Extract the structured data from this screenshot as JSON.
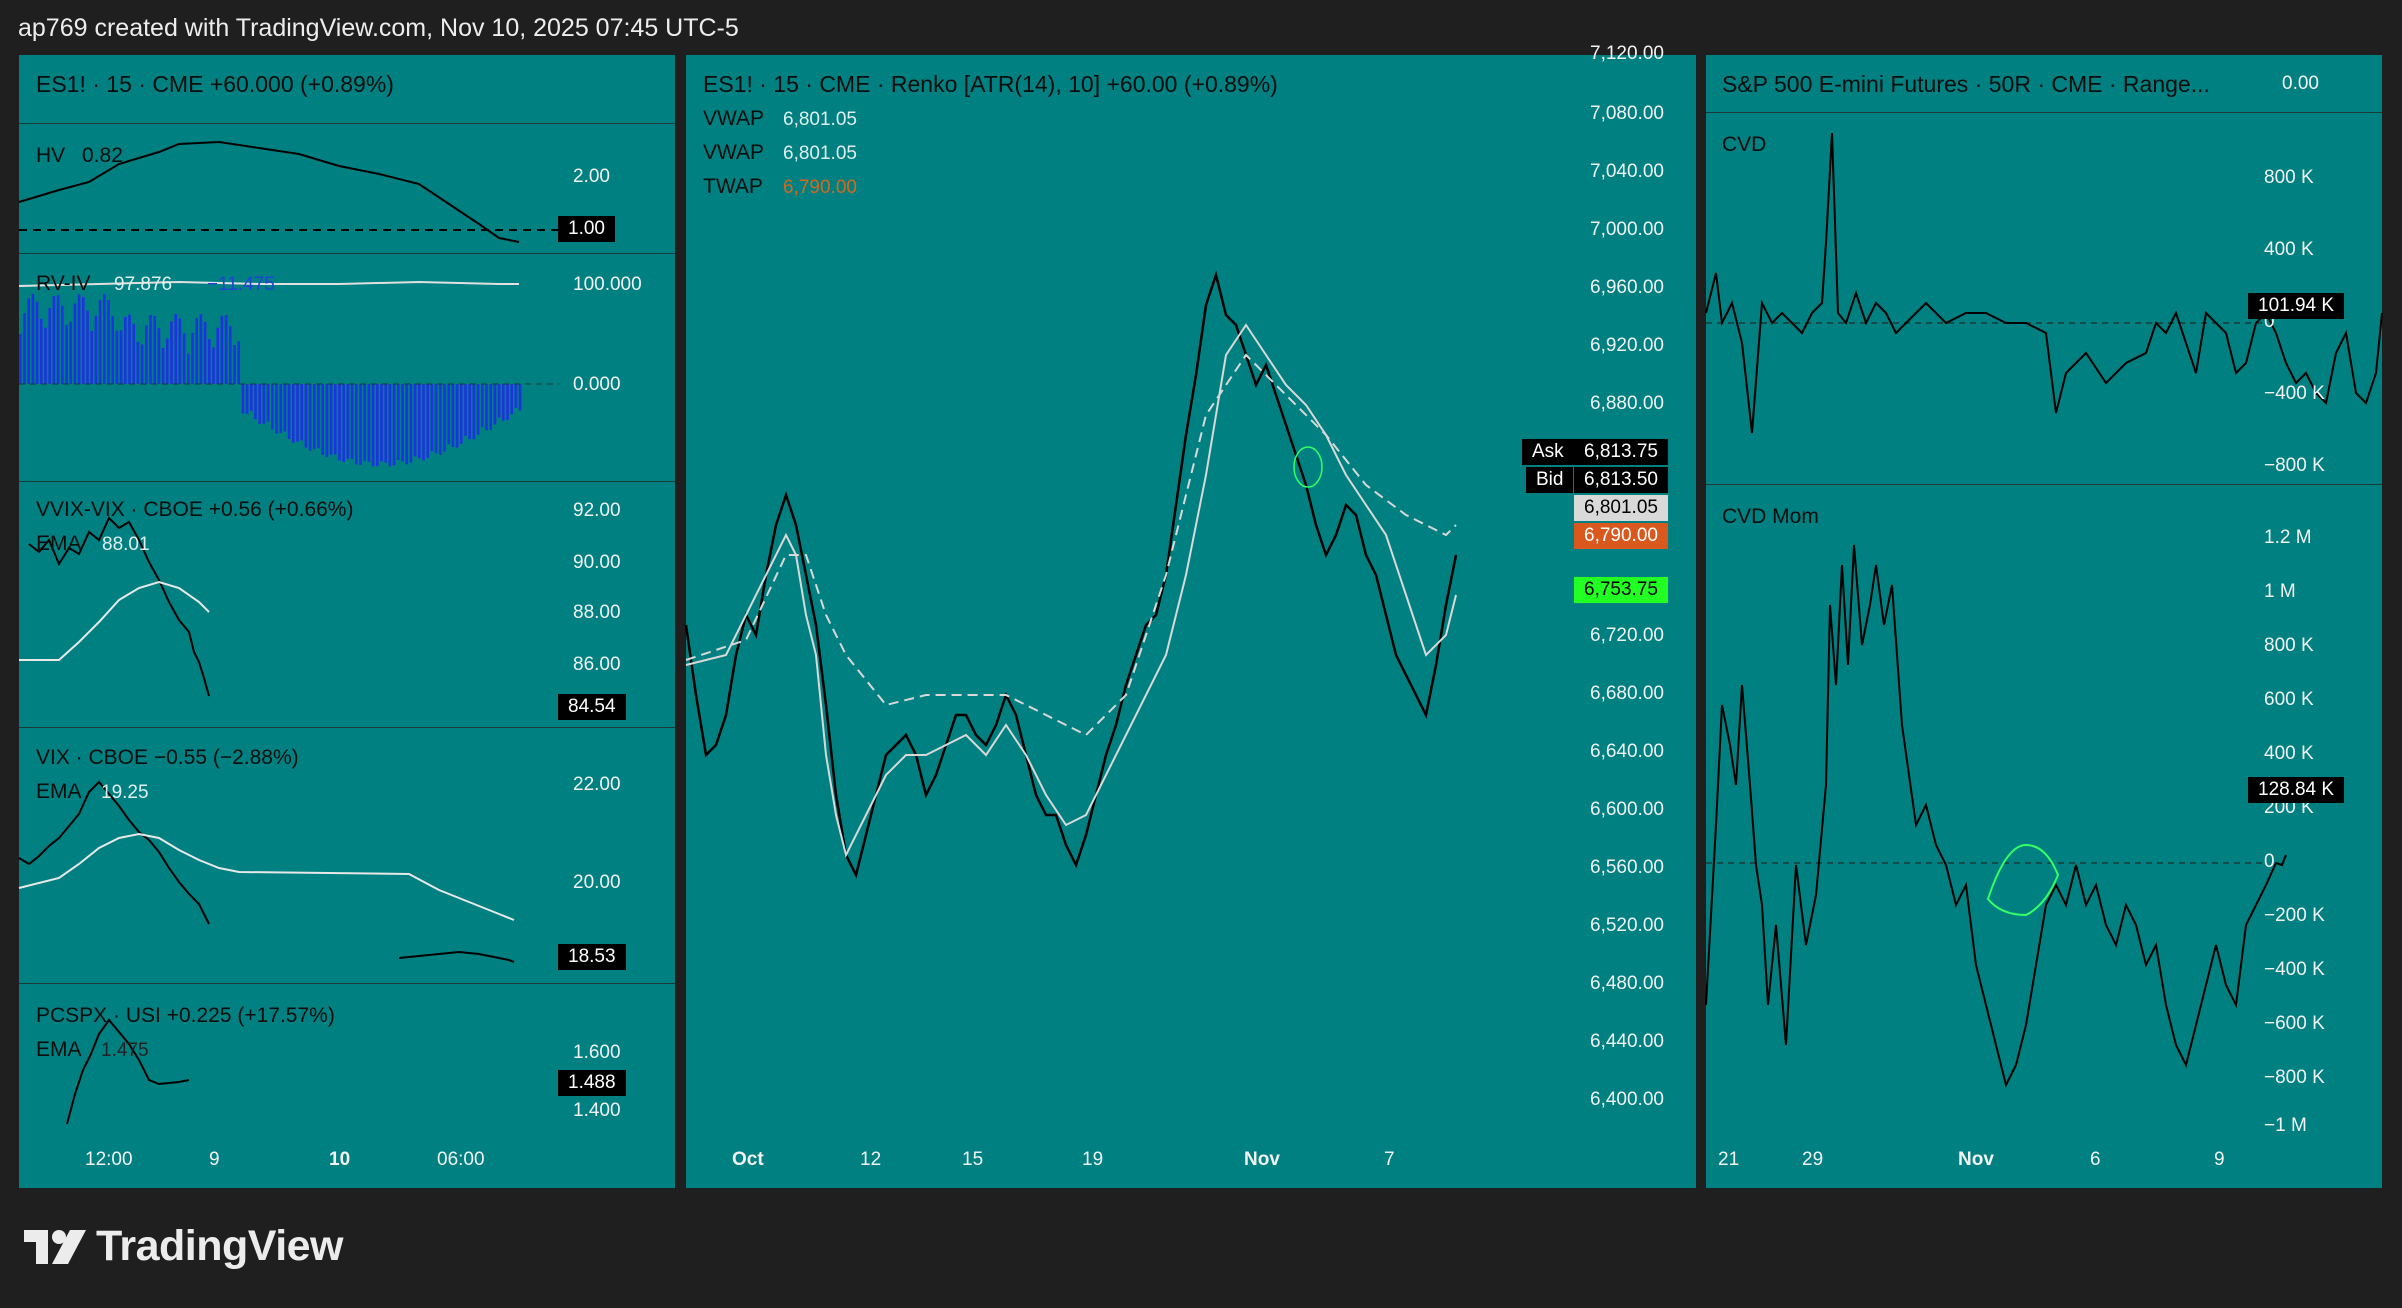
{
  "header": {
    "text": "ap769 created with TradingView.com, Nov 10, 2025 07:45 UTC-5"
  },
  "brand": {
    "name": "TradingView"
  },
  "colors": {
    "panel_bg": "#008080",
    "page_bg": "#1f1f1f",
    "ask_bid": "#000000",
    "vwap_tag": "#d9d9d9",
    "twap_tag": "#d9581d",
    "last_tag": "#22ff22",
    "histogram": "#1e33e0"
  },
  "left": {
    "main_title": "ES1! · 15 · CME  +60.000 (+0.89%)",
    "hv": {
      "title": "HV",
      "value": "0.82",
      "axis": [
        "2.00"
      ],
      "tag": "1.00"
    },
    "rviv": {
      "title": "RV-IV",
      "value1": "97.876",
      "value2": "−11.475",
      "axis": [
        "100.000",
        "0.000"
      ]
    },
    "vvix": {
      "title": "VVIX-VIX · CBOE  +0.56 (+0.66%)",
      "ema_label": "EMA",
      "ema_value": "88.01",
      "axis": [
        "92.00",
        "90.00",
        "88.00",
        "86.00"
      ],
      "tag": "84.54"
    },
    "vix": {
      "title": "VIX · CBOE  −0.55 (−2.88%)",
      "ema_label": "EMA",
      "ema_value": "19.25",
      "axis": [
        "22.00",
        "20.00"
      ],
      "tag": "18.53"
    },
    "pcspx": {
      "title": "PCSPX · USI  +0.225 (+17.57%)",
      "ema_label": "EMA",
      "ema_value": "1.475",
      "axis": [
        "1.600",
        "1.400"
      ],
      "tag": "1.488"
    },
    "xaxis": [
      "12:00",
      "9",
      "10",
      "06:00"
    ]
  },
  "center": {
    "title": "ES1! · 15 · CME · Renko [ATR(14), 10]  +60.00 (+0.89%)",
    "legend": [
      {
        "name": "VWAP",
        "value": "6,801.05"
      },
      {
        "name": "VWAP",
        "value": "6,801.05"
      },
      {
        "name": "TWAP",
        "value": "6,790.00"
      }
    ],
    "ask_label": "Ask",
    "ask": "6,813.75",
    "bid_label": "Bid",
    "bid": "6,813.50",
    "vwap_tag": "6,801.05",
    "twap_tag": "6,790.00",
    "last_tag": "6,753.75",
    "yaxis": [
      "7,120.00",
      "7,080.00",
      "7,040.00",
      "7,000.00",
      "6,960.00",
      "6,920.00",
      "6,880.00",
      "6,720.00",
      "6,680.00",
      "6,640.00",
      "6,600.00",
      "6,560.00",
      "6,520.00",
      "6,480.00",
      "6,440.00",
      "6,400.00"
    ],
    "xaxis": [
      "Oct",
      "12",
      "15",
      "19",
      "Nov",
      "7"
    ]
  },
  "right": {
    "title": "S&P 500 E-mini Futures · 50R · CME · Range...",
    "title_value": "0.00",
    "cvd": {
      "title": "CVD",
      "axis": [
        "800 K",
        "400 K",
        "0",
        "−400 K",
        "−800 K"
      ],
      "tag": "101.94 K"
    },
    "cvdmom": {
      "title": "CVD Mom",
      "axis": [
        "1.2 M",
        "1 M",
        "800 K",
        "600 K",
        "400 K",
        "200 K",
        "0",
        "−200 K",
        "−400 K",
        "−600 K",
        "−800 K",
        "−1 M"
      ],
      "tag": "128.84 K"
    },
    "xaxis": [
      "21",
      "29",
      "Nov",
      "6",
      "9"
    ]
  }
}
